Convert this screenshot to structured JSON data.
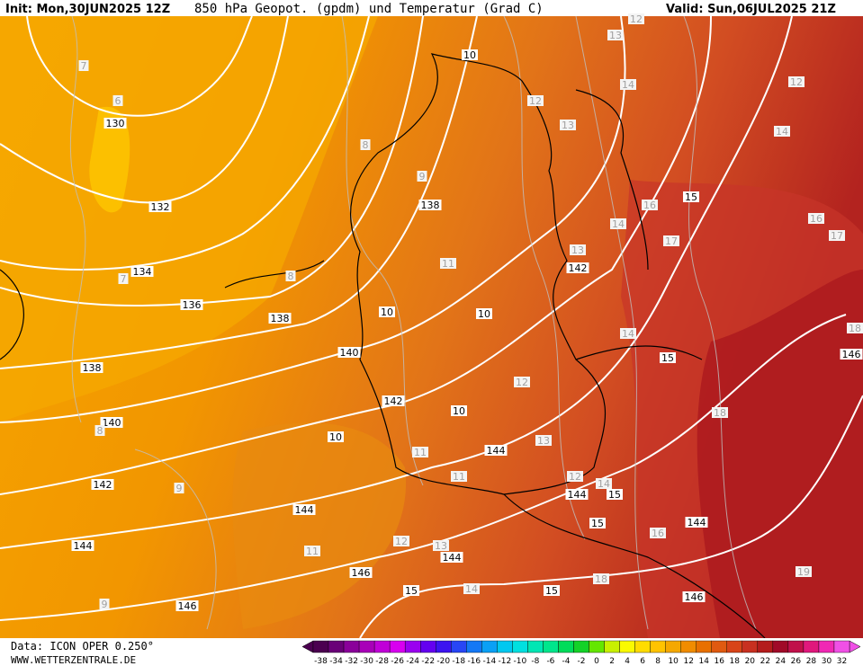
{
  "header": {
    "init": "Init: Mon,30JUN2025 12Z",
    "title": "850 hPa Geopot. (gpdm) und Temperatur (Grad C)",
    "valid": "Valid: Sun,06JUL2025 21Z"
  },
  "footer": {
    "data_source": "Data: ICON OPER 0.250°",
    "website": "WWW.WETTERZENTRALE.DE"
  },
  "map": {
    "height_labels": [
      130,
      132,
      134,
      136,
      138,
      138,
      140,
      140,
      142,
      142,
      144,
      144,
      144,
      146,
      146,
      138,
      142,
      144,
      144,
      144,
      146,
      146,
      15,
      15,
      15,
      15,
      15,
      15,
      10,
      10,
      10,
      10,
      10
    ],
    "temperature_labels": [
      7,
      6,
      8,
      9,
      7,
      8,
      11,
      12,
      13,
      13,
      12,
      14,
      12,
      14,
      16,
      14,
      17,
      16,
      17,
      13,
      14,
      12,
      13,
      11,
      11,
      12,
      14,
      8,
      9,
      11,
      12,
      13,
      14,
      16,
      18,
      18,
      19,
      9,
      18
    ]
  },
  "colorbar": {
    "labels": [
      -38,
      -34,
      -32,
      -30,
      -28,
      -26,
      -24,
      -22,
      -20,
      -18,
      -16,
      -14,
      -12,
      -10,
      -8,
      -6,
      -4,
      -2,
      0,
      2,
      4,
      6,
      8,
      10,
      12,
      14,
      16,
      18,
      20,
      22,
      24,
      26,
      28,
      30,
      32
    ],
    "colors": [
      "#4b0050",
      "#6a0078",
      "#8a009a",
      "#a800b8",
      "#c000d8",
      "#d800f0",
      "#9a00f0",
      "#6400f0",
      "#3c14f0",
      "#2846f5",
      "#1478f5",
      "#0aa0f5",
      "#00c8f0",
      "#00e0e0",
      "#00e6b4",
      "#00e68c",
      "#00dc5a",
      "#14d228",
      "#64e600",
      "#c8f000",
      "#fafa00",
      "#ffdc00",
      "#ffc300",
      "#f5a800",
      "#f08c00",
      "#e87000",
      "#e05a10",
      "#d84418",
      "#c83020",
      "#b41c1c",
      "#a00a28",
      "#c0104a",
      "#e0187c",
      "#f028b4",
      "#f050e6"
    ]
  }
}
